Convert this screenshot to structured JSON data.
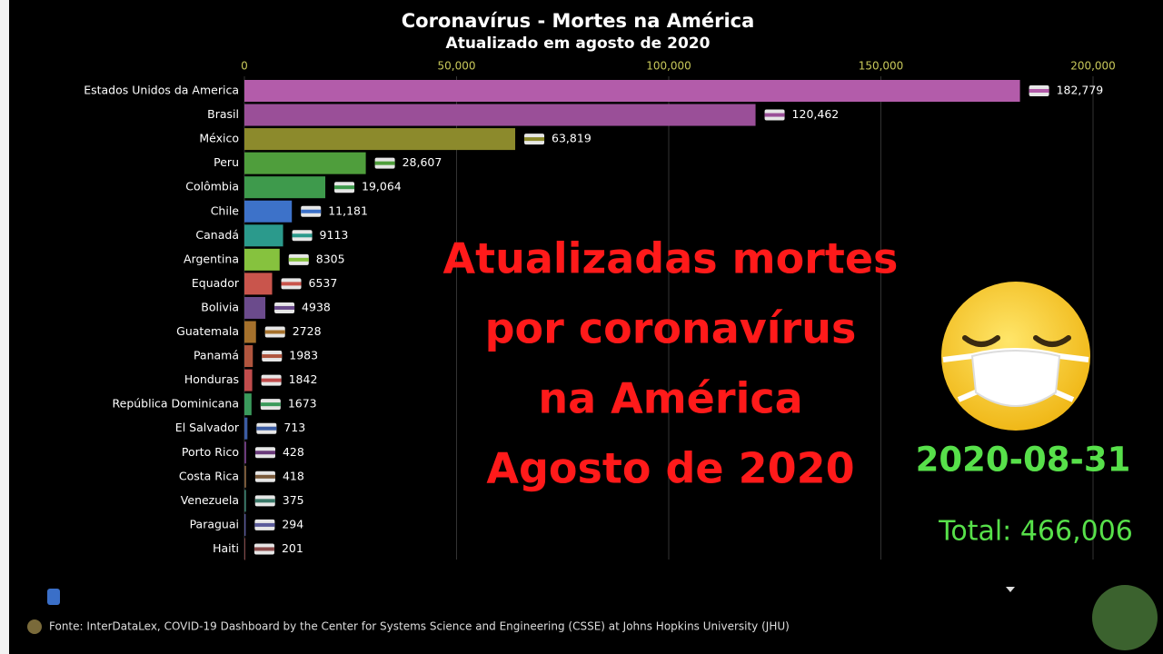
{
  "chart_data": {
    "type": "bar",
    "orientation": "horizontal",
    "title": "Coronavírus - Mortes na América",
    "subtitle": "Atualizado em agosto de 2020",
    "categories": [
      "Estados Unidos da America",
      "Brasil",
      "México",
      "Peru",
      "Colômbia",
      "Chile",
      "Canadá",
      "Argentina",
      "Equador",
      "Bolivia",
      "Guatemala",
      "Panamá",
      "Honduras",
      "República Dominicana",
      "El Salvador",
      "Porto Rico",
      "Costa Rica",
      "Venezuela",
      "Paraguai",
      "Haiti"
    ],
    "values": [
      182779,
      120462,
      63819,
      28607,
      19064,
      11181,
      9113,
      8305,
      6537,
      4938,
      2728,
      1983,
      1842,
      1673,
      713,
      428,
      418,
      375,
      294,
      201
    ],
    "value_labels": [
      "182,779",
      "120,462",
      "63,819",
      "28,607",
      "19,064",
      "11,181",
      "9113",
      "8305",
      "6537",
      "4938",
      "2728",
      "1983",
      "1842",
      "1673",
      "713",
      "428",
      "418",
      "375",
      "294",
      "201"
    ],
    "colors": [
      "#b35caa",
      "#9a4f98",
      "#8c8a2c",
      "#4f9e3c",
      "#3e9a4c",
      "#3d72c9",
      "#2b9a8c",
      "#86c23e",
      "#c9554c",
      "#6b4b8c",
      "#a5712c",
      "#b0553e",
      "#c04c4c",
      "#3a9a5c",
      "#3b5ca3",
      "#6a3a7a",
      "#7a5a3a",
      "#3a7a6a",
      "#5a5a9a",
      "#8a4a4a"
    ],
    "xlim": [
      0,
      200000
    ],
    "xticks": [
      0,
      {
        "value": 50000,
        "label": "50,000"
      },
      {
        "value": 100000,
        "label": "100,000"
      },
      {
        "value": 150000,
        "label": "150,000"
      },
      {
        "value": 200000,
        "label": "200,000"
      }
    ],
    "grid": true,
    "date_label": "2020-08-31",
    "total_label": "Total: 466,006",
    "overlay_text": [
      "Atualizadas mortes",
      "por coronavírus",
      "na América",
      "Agosto de 2020"
    ],
    "source": "Fonte: InterDataLex, COVID-19 Dashboard by the Center for Systems Science and Engineering (CSSE) at Johns Hopkins University (JHU)"
  }
}
